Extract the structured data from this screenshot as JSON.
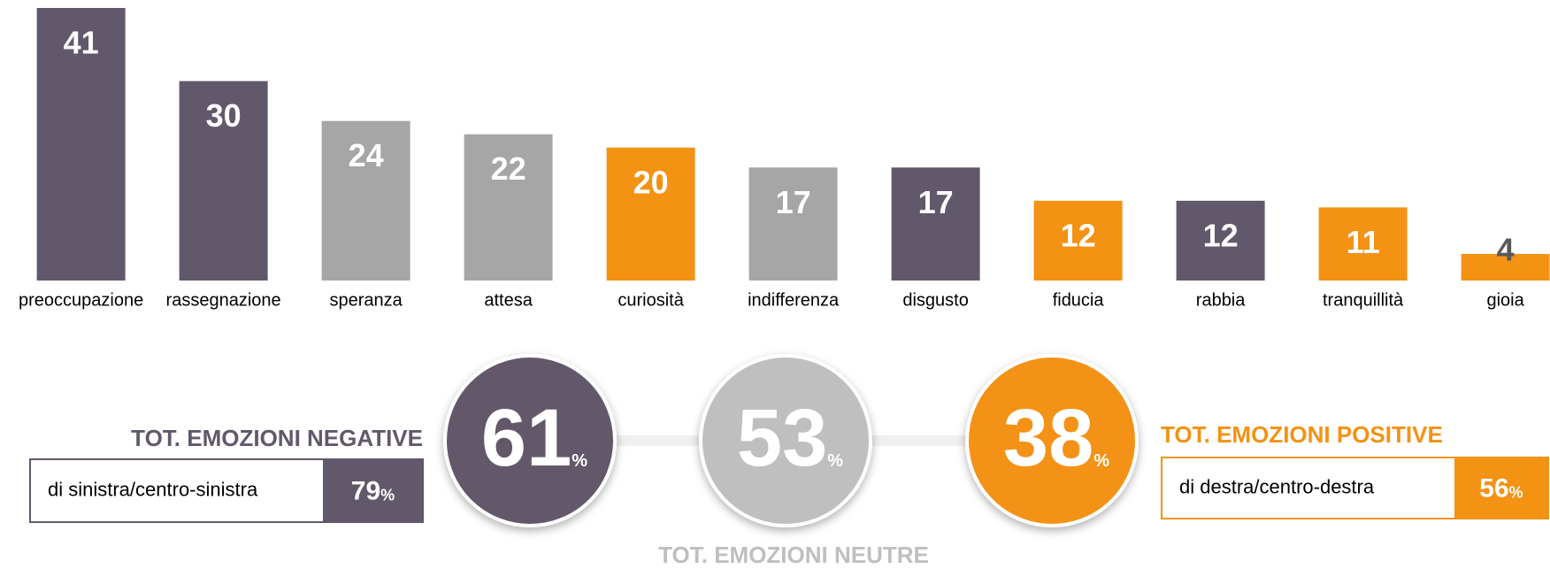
{
  "chart_data": {
    "type": "bar",
    "categories": [
      "preoccupazione",
      "rassegnazione",
      "speranza",
      "attesa",
      "curiosità",
      "indifferenza",
      "disgusto",
      "fiducia",
      "rabbia",
      "tranquillità",
      "gioia"
    ],
    "values": [
      41,
      30,
      24,
      22,
      20,
      17,
      17,
      12,
      12,
      11,
      4
    ],
    "colors": [
      "#62586b",
      "#62586b",
      "#a6a6a6",
      "#a6a6a6",
      "#f39213",
      "#a6a6a6",
      "#62586b",
      "#f39213",
      "#62586b",
      "#f39213",
      "#f39213"
    ],
    "summary": [
      {
        "label": "TOT. EMOZIONI NEGATIVE",
        "value": 61,
        "unit": "%",
        "color": "#62586b",
        "sub_label": "di sinistra/centro-sinistra",
        "sub_value": 79,
        "sub_unit": "%"
      },
      {
        "label": "TOT. EMOZIONI NEUTRE",
        "value": 53,
        "unit": "%",
        "color": "#bfbfbf"
      },
      {
        "label": "TOT. EMOZIONI POSITIVE",
        "value": 38,
        "unit": "%",
        "color": "#f39213",
        "sub_label": "di destra/centro-destra",
        "sub_value": 56,
        "sub_unit": "%"
      }
    ]
  }
}
